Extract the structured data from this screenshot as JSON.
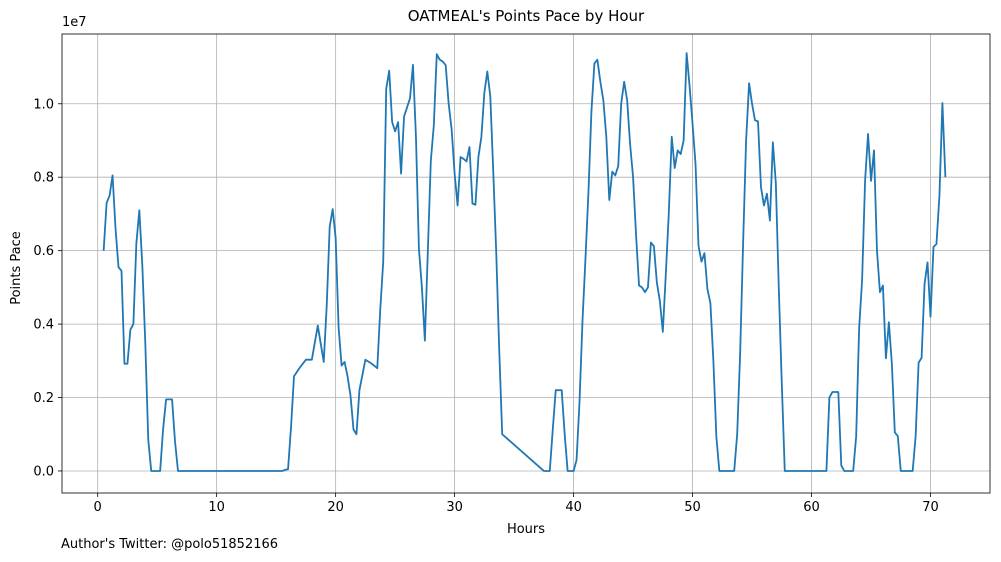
{
  "chart_data": {
    "type": "line",
    "title": "OATMEAL's Points Pace by Hour",
    "xlabel": "Hours",
    "ylabel": "Points Pace",
    "offset_text": "1e7",
    "xlim": [
      -3,
      75
    ],
    "ylim": [
      -600000,
      11900000
    ],
    "x_ticks": [
      0,
      10,
      20,
      30,
      40,
      50,
      60,
      70
    ],
    "x_tick_labels": [
      "0",
      "10",
      "20",
      "30",
      "40",
      "50",
      "60",
      "70"
    ],
    "y_ticks": [
      0,
      2000000,
      4000000,
      6000000,
      8000000,
      10000000
    ],
    "y_tick_labels": [
      "0.0",
      "0.2",
      "0.4",
      "0.6",
      "0.8",
      "1.0"
    ],
    "grid": true,
    "line_color": "#1f77b4",
    "series": [
      {
        "x": [
          0.5,
          0.75,
          1.0,
          1.25,
          1.5,
          1.75,
          2.0,
          2.25,
          2.5,
          2.75,
          3.0,
          3.25,
          3.5,
          3.75,
          4.0,
          4.25,
          4.5,
          4.75,
          5.0,
          5.25,
          5.5,
          5.75,
          6.0,
          6.25,
          6.5,
          6.75,
          7.0,
          15.5,
          15.75,
          16.0,
          16.25,
          16.5,
          17.0,
          17.5,
          18.0,
          18.5,
          18.75,
          19.0,
          19.25,
          19.5,
          19.75,
          20.0,
          20.25,
          20.5,
          20.75,
          21.0,
          21.25,
          21.5,
          21.75,
          22.0,
          22.5,
          23.0,
          23.5,
          23.75,
          24.0,
          24.25,
          24.5,
          24.75,
          25.0,
          25.25,
          25.5,
          25.75,
          26.0,
          26.25,
          26.5,
          26.75,
          27.0,
          27.25,
          27.5,
          27.75,
          28.0,
          28.25,
          28.5,
          28.75,
          29.0,
          29.25,
          29.5,
          29.75,
          30.0,
          30.25,
          30.5,
          30.75,
          31.0,
          31.25,
          31.5,
          31.75,
          32.0,
          32.25,
          32.5,
          32.75,
          33.0,
          33.25,
          33.5,
          33.75,
          34.0,
          37.5,
          37.75,
          38.0,
          38.25,
          38.5,
          38.75,
          39.0,
          39.25,
          39.5,
          39.75,
          40.0,
          40.25,
          40.5,
          40.75,
          41.0,
          41.25,
          41.5,
          41.75,
          42.0,
          42.25,
          42.5,
          42.75,
          43.0,
          43.25,
          43.5,
          43.75,
          44.0,
          44.25,
          44.5,
          44.75,
          45.0,
          45.25,
          45.5,
          45.75,
          46.0,
          46.25,
          46.5,
          46.75,
          47.0,
          47.25,
          47.5,
          47.75,
          48.0,
          48.25,
          48.5,
          48.75,
          49.0,
          49.25,
          49.5,
          49.75,
          50.0,
          50.25,
          50.5,
          50.75,
          51.0,
          51.25,
          51.5,
          51.75,
          52.0,
          52.25,
          52.5,
          52.75,
          53.0,
          53.25,
          53.5,
          53.75,
          54.0,
          54.25,
          54.5,
          54.75,
          55.0,
          55.25,
          55.5,
          55.75,
          56.0,
          56.25,
          56.5,
          56.75,
          57.0,
          57.25,
          57.5,
          57.75,
          58.0,
          61.0,
          61.25,
          61.5,
          61.75,
          62.0,
          62.25,
          62.5,
          62.75,
          63.0,
          63.25,
          63.5,
          63.75,
          64.0,
          64.25,
          64.5,
          64.75,
          65.0,
          65.25,
          65.5,
          65.75,
          66.0,
          66.25,
          66.5,
          66.75,
          67.0,
          67.25,
          67.5,
          67.75,
          68.0,
          68.25,
          68.5,
          68.75,
          69.0,
          69.25,
          69.5,
          69.75,
          70.0,
          70.25,
          70.5,
          70.75,
          71.0,
          71.25
        ],
        "y": [
          6000000,
          7300000,
          7500000,
          8050000,
          6600000,
          5550000,
          5450000,
          2920000,
          2920000,
          3850000,
          4000000,
          6200000,
          7100000,
          5600000,
          3500000,
          850000,
          0,
          0,
          0,
          0,
          1150000,
          1950000,
          1950000,
          1950000,
          800000,
          0,
          0,
          0,
          30000,
          50000,
          1200000,
          2580000,
          2820000,
          3030000,
          3030000,
          3960000,
          3460000,
          2970000,
          4500000,
          6650000,
          7130000,
          6350000,
          3900000,
          2870000,
          2970000,
          2580000,
          2050000,
          1130000,
          1000000,
          2200000,
          3030000,
          2930000,
          2800000,
          4400000,
          5700000,
          10400000,
          10900000,
          9500000,
          9250000,
          9500000,
          8100000,
          9650000,
          9900000,
          10150000,
          11060000,
          9100000,
          6050000,
          5000000,
          3550000,
          6000000,
          8450000,
          9400000,
          11350000,
          11200000,
          11150000,
          11050000,
          10000000,
          9300000,
          8100000,
          7230000,
          8550000,
          8500000,
          8430000,
          8820000,
          7280000,
          7250000,
          8550000,
          9100000,
          10300000,
          10880000,
          10200000,
          8130000,
          5930000,
          3300000,
          1000000,
          0,
          0,
          0,
          1130000,
          2200000,
          2200000,
          2200000,
          1000000,
          0,
          0,
          0,
          300000,
          1900000,
          4100000,
          5800000,
          7600000,
          9800000,
          11100000,
          11200000,
          10600000,
          10100000,
          9100000,
          7380000,
          8150000,
          8050000,
          8300000,
          10000000,
          10600000,
          10100000,
          8900000,
          8000000,
          6430000,
          5050000,
          5000000,
          4870000,
          5000000,
          6220000,
          6120000,
          5130000,
          4630000,
          3790000,
          5350000,
          7000000,
          9100000,
          8250000,
          8730000,
          8630000,
          9000000,
          11380000,
          10480000,
          9450000,
          8350000,
          6130000,
          5700000,
          5930000,
          4950000,
          4570000,
          3000000,
          930000,
          0,
          0,
          0,
          0,
          0,
          0,
          1000000,
          3200000,
          6220000,
          9000000,
          10560000,
          10000000,
          9550000,
          9520000,
          7730000,
          7230000,
          7550000,
          6820000,
          8950000,
          7830000,
          4950000,
          2380000,
          0,
          0,
          0,
          0,
          2000000,
          2150000,
          2150000,
          2150000,
          150000,
          0,
          0,
          0,
          0,
          930000,
          3880000,
          5200000,
          7900000,
          9180000,
          7900000,
          8730000,
          6000000,
          4870000,
          5050000,
          3070000,
          4050000,
          2930000,
          1050000,
          950000,
          0,
          0,
          0,
          0,
          0,
          950000,
          2950000,
          3080000,
          5100000,
          5680000,
          4200000,
          6100000,
          6180000,
          7500000,
          10020000,
          8000000
        ]
      }
    ]
  },
  "footer": {
    "text": "Author's Twitter: @polo51852166"
  }
}
